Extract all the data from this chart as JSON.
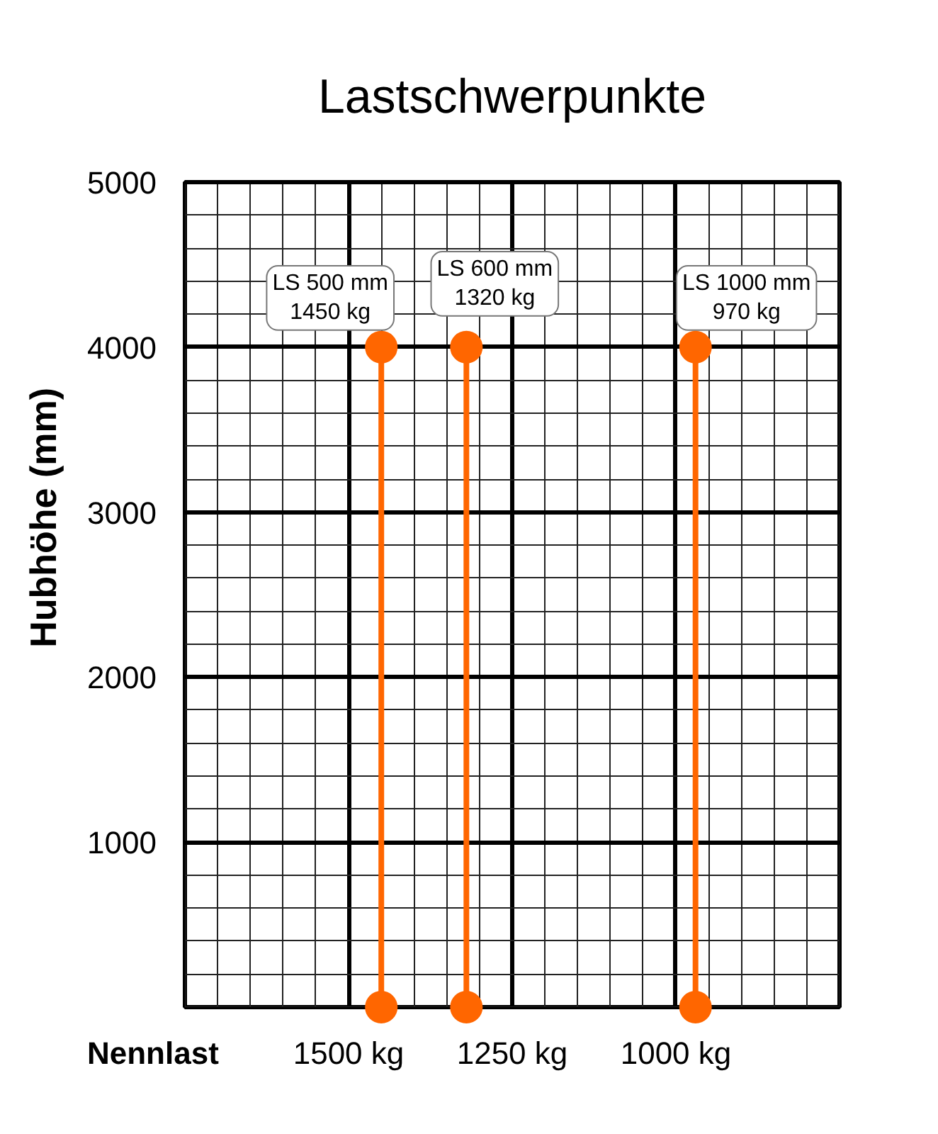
{
  "chart_data": {
    "type": "line",
    "title": "Lastschwerpunkte",
    "xlabel": "Nennlast",
    "ylabel": "Hubhöhe (mm)",
    "xlim": [
      1750,
      750
    ],
    "xticks": [
      {
        "value": 1750,
        "label": null
      },
      {
        "value": 1700,
        "label": null
      },
      {
        "value": 1650,
        "label": null
      },
      {
        "value": 1600,
        "label": null
      },
      {
        "value": 1550,
        "label": null
      },
      {
        "value": 1500,
        "label": "1500 kg"
      },
      {
        "value": 1450,
        "label": null
      },
      {
        "value": 1400,
        "label": null
      },
      {
        "value": 1350,
        "label": null
      },
      {
        "value": 1300,
        "label": null
      },
      {
        "value": 1250,
        "label": "1250 kg"
      },
      {
        "value": 1200,
        "label": null
      },
      {
        "value": 1150,
        "label": null
      },
      {
        "value": 1100,
        "label": null
      },
      {
        "value": 1050,
        "label": null
      },
      {
        "value": 1000,
        "label": "1000 kg"
      },
      {
        "value": 950,
        "label": null
      },
      {
        "value": 900,
        "label": null
      },
      {
        "value": 850,
        "label": null
      },
      {
        "value": 800,
        "label": null
      },
      {
        "value": 750,
        "label": null
      }
    ],
    "ylim": [
      0,
      5000
    ],
    "yticks": [
      {
        "value": 0,
        "label": null
      },
      {
        "value": 200,
        "label": null
      },
      {
        "value": 400,
        "label": null
      },
      {
        "value": 600,
        "label": null
      },
      {
        "value": 800,
        "label": null
      },
      1000,
      {
        "value": 1200,
        "label": null
      },
      {
        "value": 1400,
        "label": null
      },
      {
        "value": 1600,
        "label": null
      },
      {
        "value": 1800,
        "label": null
      },
      2000,
      {
        "value": 2200,
        "label": null
      },
      {
        "value": 2400,
        "label": null
      },
      {
        "value": 2600,
        "label": null
      },
      {
        "value": 2800,
        "label": null
      },
      3000,
      {
        "value": 3200,
        "label": null
      },
      {
        "value": 3400,
        "label": null
      },
      {
        "value": 3600,
        "label": null
      },
      {
        "value": 3800,
        "label": null
      },
      4000,
      {
        "value": 4200,
        "label": null
      },
      {
        "value": 4400,
        "label": null
      },
      {
        "value": 4600,
        "label": null
      },
      {
        "value": 4800,
        "label": null
      },
      5000
    ],
    "grid": true,
    "marker": "circle",
    "series": [
      {
        "color": "#ff6600",
        "x": [
          1450,
          1450
        ],
        "values": [
          0,
          4000
        ]
      },
      {
        "color": "#ff6600",
        "x": [
          1320,
          1320
        ],
        "values": [
          0,
          4000
        ]
      },
      {
        "color": "#ff6600",
        "x": [
          970,
          970
        ],
        "values": [
          0,
          4000
        ]
      }
    ],
    "annotations": [
      {
        "text": "LS 500 mm\n1450 kg",
        "x": 1450,
        "y": 4000
      },
      {
        "text": "LS 600 mm\n1320 kg",
        "x": 1320,
        "y": 4000
      },
      {
        "text": "LS 1000 mm\n970 kg",
        "x": 970,
        "y": 4000
      }
    ]
  }
}
